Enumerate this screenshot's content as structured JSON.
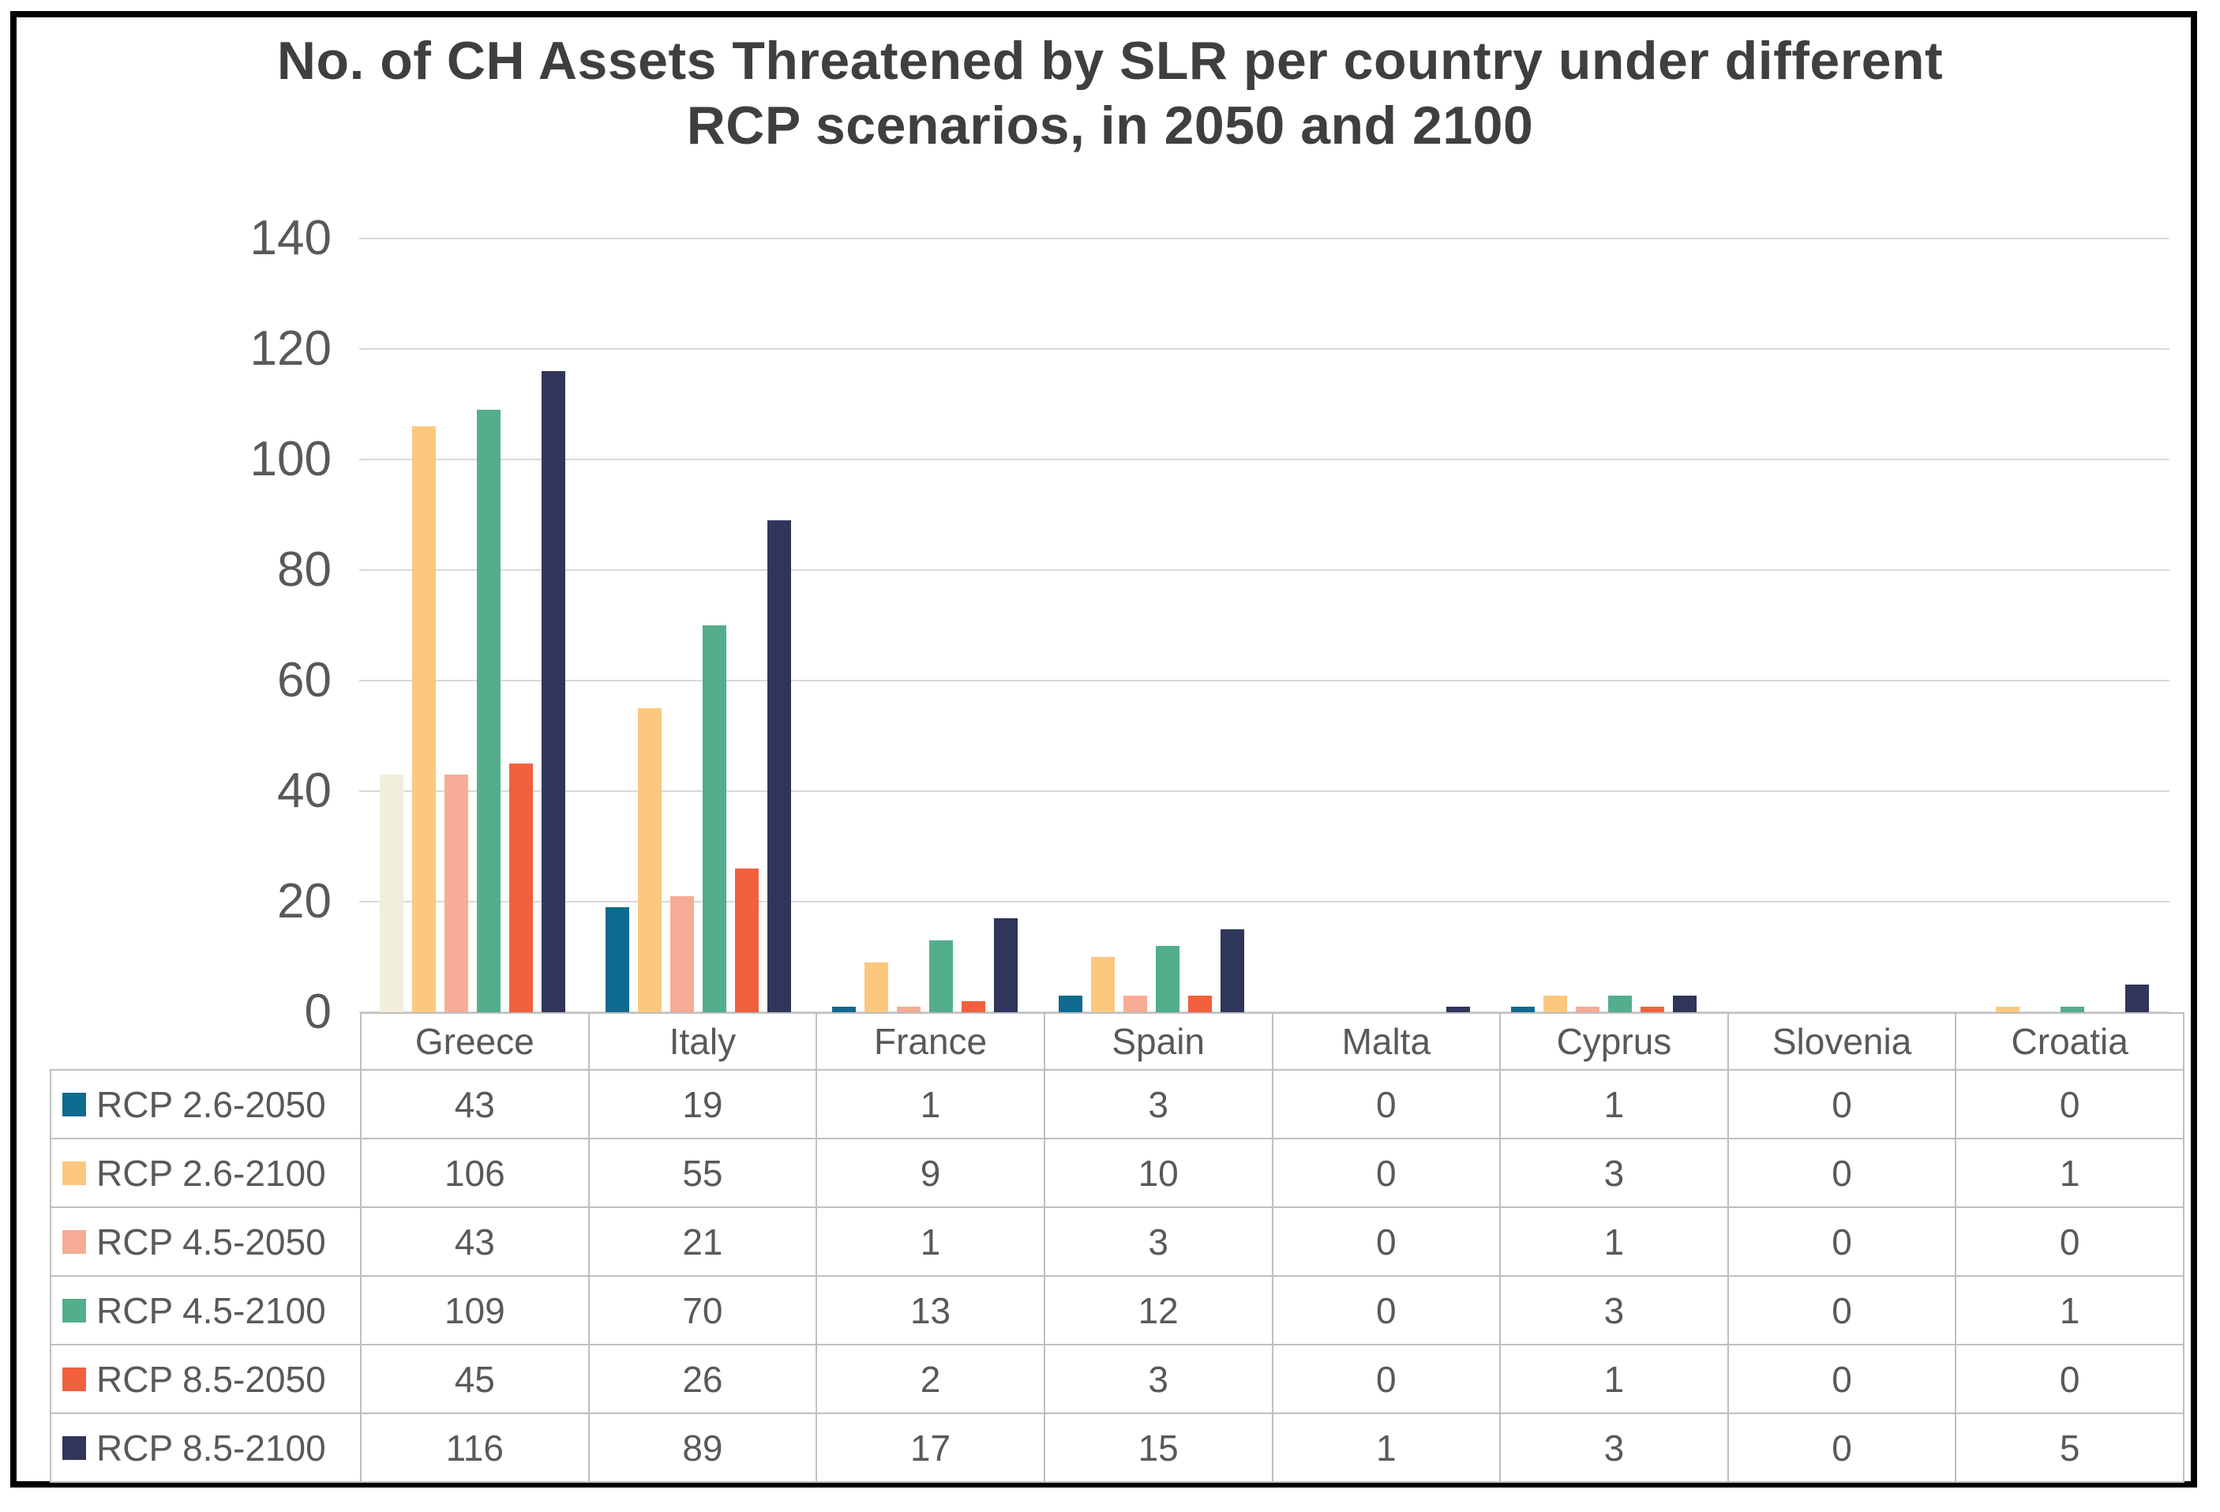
{
  "title": {
    "line1": "No. of CH Assets Threatened by SLR per country under different",
    "line2": "RCP scenarios, in 2050 and 2100"
  },
  "colors": {
    "background": "#FFFFFF",
    "frame_border": "#000000",
    "gridline": "#D9D9D9",
    "table_border": "#BFBFBF",
    "axis_text": "#595959",
    "table_text": "#595959",
    "title_text": "#3F3F3F",
    "anomaly_bar": "#F2EEDC"
  },
  "chart_data": {
    "type": "bar",
    "title": "No. of CH Assets Threatened by SLR per country under different RCP scenarios, in 2050 and 2100",
    "xlabel": "",
    "ylabel": "",
    "categories": [
      "Greece",
      "Italy",
      "France",
      "Spain",
      "Malta",
      "Cyprus",
      "Slovenia",
      "Croatia"
    ],
    "series": [
      {
        "name": "RCP 2.6-2050",
        "color": "#0E6A8E",
        "values": [
          43,
          19,
          1,
          3,
          0,
          1,
          0,
          0
        ]
      },
      {
        "name": "RCP 2.6-2100",
        "color": "#FBC87D",
        "values": [
          106,
          55,
          9,
          10,
          0,
          3,
          0,
          1
        ]
      },
      {
        "name": "RCP 4.5-2050",
        "color": "#F6AC96",
        "values": [
          43,
          21,
          1,
          3,
          0,
          1,
          0,
          0
        ]
      },
      {
        "name": "RCP 4.5-2100",
        "color": "#53AE8B",
        "values": [
          109,
          70,
          13,
          12,
          0,
          3,
          0,
          1
        ]
      },
      {
        "name": "RCP 8.5-2050",
        "color": "#F2603E",
        "values": [
          45,
          26,
          2,
          3,
          0,
          1,
          0,
          0
        ]
      },
      {
        "name": "RCP 8.5-2100",
        "color": "#30355B",
        "values": [
          116,
          89,
          17,
          15,
          1,
          3,
          0,
          5
        ]
      }
    ],
    "anomaly": {
      "note": "The Greece bar of series RCP 2.6-2050 is drawn in a pale cream fill instead of the series teal",
      "series": "RCP 2.6-2050",
      "category": "Greece",
      "bar_color": "#F2EEDC"
    },
    "y_axis": {
      "min": 0,
      "max": 140,
      "step": 20,
      "ticks": [
        0,
        20,
        40,
        60,
        80,
        100,
        120,
        140
      ]
    },
    "grid": true,
    "legend_position": "table-first-column",
    "table_legend_labels": [
      "RCP 2.6-2050",
      "RCP 2.6-2100",
      "RCP 4.5-2050",
      "RCP 4.5-2100",
      "RCP 8.5-2050",
      "RCP 8.5-2100"
    ]
  }
}
